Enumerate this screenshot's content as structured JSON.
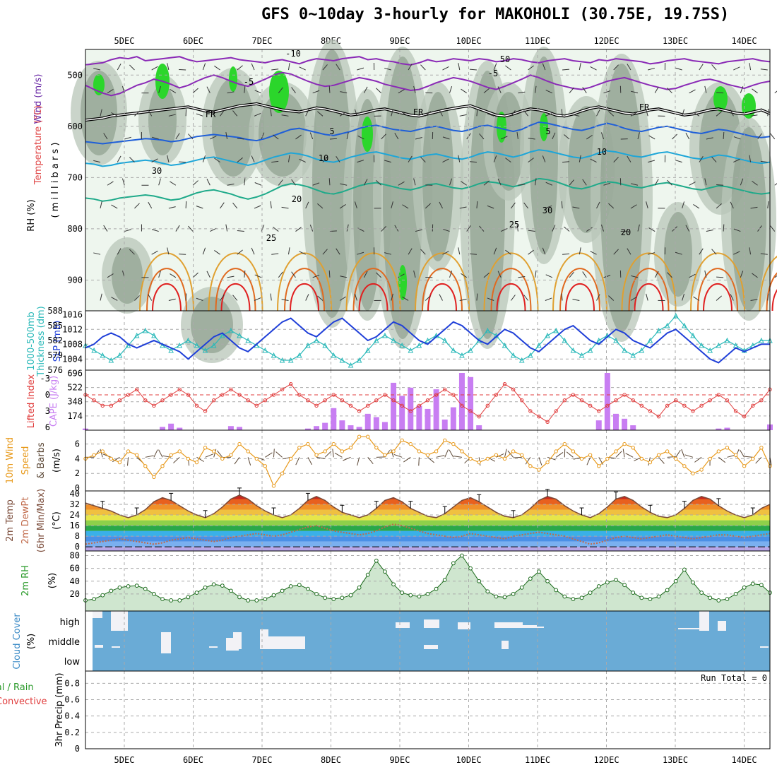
{
  "title": "GFS 0~10day 3-hourly for MAKOHOLI (30.75E, 19.75S)",
  "days": [
    "5DEC",
    "6DEC",
    "7DEC",
    "8DEC",
    "9DEC",
    "10DEC",
    "11DEC",
    "12DEC",
    "13DEC",
    "14DEC"
  ],
  "run_total": "Run Total = 0",
  "colors": {
    "rh_green": "#2bd62b",
    "slp": "#1f3fd8",
    "thick": "#2ab9b9",
    "li": "#e03c3c",
    "cape": "#c87ef2",
    "wind": "#e89a1c",
    "barb": "#5a4634",
    "temp": "#7a4a38",
    "dew": "#c06a4a",
    "rh2": "#2a9a2a",
    "cloud": "#6aabd6",
    "purple": "#8a2ab6",
    "blue": "#1f5fd8",
    "cyan": "#1ea6d8",
    "teal": "#1faa8a",
    "orange": "#e0a030",
    "dorange": "#e06a20",
    "red": "#e02020"
  },
  "chart_data": [
    {
      "type": "line",
      "name": "cross-section",
      "ylabels": [
        "Wind (m/s)",
        "Temperature (°C)",
        "RH (%)",
        "( m i l l i b a r s )"
      ],
      "yticks": [
        500,
        600,
        700,
        800,
        900
      ],
      "contour_labels": [
        "-10",
        "-5",
        "FR",
        "FR",
        "FR",
        "-5",
        "5",
        "5",
        "10",
        "10",
        "20",
        "20",
        "25",
        "25",
        "50",
        "30",
        "30"
      ],
      "levels": {
        "minus10": [
          480,
          478,
          476,
          470,
          466,
          468,
          464,
          472,
          470,
          468,
          466,
          464,
          470,
          474,
          472,
          470,
          468,
          466,
          470,
          472,
          474,
          476,
          472,
          470,
          474,
          478,
          472,
          468,
          470,
          472,
          468,
          466,
          464,
          470,
          468,
          472,
          474,
          478,
          480,
          476,
          470,
          474,
          472,
          468,
          470,
          472,
          468,
          470,
          474,
          472,
          468,
          470,
          474,
          476,
          472,
          470,
          468,
          472,
          474,
          476,
          470,
          472,
          468,
          470,
          472,
          474,
          478,
          476,
          472,
          470,
          468,
          472,
          474,
          476,
          478,
          474,
          472,
          470,
          468,
          472,
          474
        ],
        "minus5": [
          520,
          528,
          535,
          540,
          536,
          528,
          520,
          515,
          508,
          512,
          518,
          525,
          520,
          512,
          505,
          500,
          505,
          512,
          518,
          522,
          515,
          508,
          500,
          495,
          498,
          505,
          512,
          518,
          522,
          520,
          515,
          510,
          505,
          508,
          512,
          518,
          522,
          526,
          530,
          528,
          522,
          515,
          510,
          505,
          508,
          512,
          518,
          524,
          528,
          522,
          515,
          508,
          500,
          505,
          512,
          518,
          522,
          526,
          528,
          524,
          518,
          512,
          508,
          505,
          510,
          515,
          520,
          524,
          528,
          526,
          520,
          515,
          510,
          508,
          512,
          518,
          522,
          526,
          520,
          515,
          512
        ],
        "fr": [
          588,
          586,
          584,
          580,
          578,
          576,
          574,
          572,
          570,
          568,
          566,
          564,
          562,
          566,
          570,
          572,
          568,
          564,
          560,
          558,
          556,
          560,
          564,
          568,
          570,
          572,
          568,
          564,
          566,
          570,
          574,
          578,
          576,
          572,
          568,
          566,
          570,
          574,
          578,
          580,
          576,
          572,
          568,
          565,
          562,
          560,
          566,
          572,
          578,
          580,
          576,
          570,
          566,
          568,
          572,
          578,
          580,
          576,
          570,
          565,
          562,
          566,
          570,
          574,
          576,
          572,
          568,
          566,
          570,
          574,
          578,
          576,
          572,
          568,
          566,
          570,
          574,
          576,
          572,
          568,
          575
        ],
        "plus5": [
          630,
          632,
          634,
          632,
          630,
          628,
          626,
          624,
          625,
          627,
          630,
          628,
          624,
          620,
          618,
          616,
          618,
          620,
          622,
          626,
          628,
          624,
          618,
          612,
          606,
          604,
          608,
          612,
          616,
          618,
          614,
          610,
          604,
          600,
          598,
          602,
          606,
          608,
          610,
          606,
          602,
          600,
          604,
          608,
          610,
          606,
          600,
          598,
          602,
          606,
          610,
          606,
          598,
          592,
          594,
          598,
          602,
          606,
          608,
          604,
          598,
          594,
          598,
          604,
          608,
          610,
          606,
          602,
          600,
          604,
          608,
          612,
          614,
          610,
          606,
          608,
          612,
          616,
          620,
          622,
          620
        ],
        "plus10": [
          672,
          674,
          678,
          676,
          672,
          670,
          668,
          666,
          668,
          672,
          676,
          674,
          670,
          666,
          662,
          660,
          664,
          668,
          672,
          676,
          672,
          666,
          660,
          656,
          652,
          654,
          658,
          664,
          668,
          670,
          666,
          660,
          656,
          652,
          650,
          654,
          658,
          662,
          664,
          660,
          656,
          654,
          658,
          662,
          664,
          660,
          654,
          650,
          652,
          656,
          660,
          656,
          650,
          646,
          648,
          652,
          656,
          660,
          662,
          658,
          652,
          648,
          650,
          654,
          658,
          660,
          656,
          652,
          650,
          654,
          658,
          662,
          664,
          660,
          656,
          658,
          662,
          666,
          670,
          672,
          670
        ],
        "plus20": [
          740,
          742,
          746,
          744,
          740,
          738,
          736,
          734,
          736,
          740,
          744,
          742,
          736,
          730,
          726,
          724,
          728,
          732,
          738,
          742,
          738,
          732,
          724,
          716,
          712,
          714,
          718,
          724,
          730,
          732,
          728,
          722,
          716,
          712,
          710,
          714,
          718,
          722,
          724,
          720,
          714,
          712,
          716,
          720,
          722,
          718,
          712,
          708,
          710,
          714,
          718,
          714,
          708,
          702,
          704,
          708,
          714,
          720,
          722,
          718,
          712,
          708,
          710,
          714,
          718,
          720,
          716,
          712,
          710,
          714,
          718,
          722,
          724,
          720,
          716,
          718,
          722,
          726,
          730,
          732,
          730
        ]
      }
    },
    {
      "type": "line",
      "name": "thickness-slp",
      "ylabels_left": [
        "1000-500mb",
        "Thickness (dm)"
      ],
      "ylabel_right": "SLP (mb)",
      "yticks_left": [
        576,
        579,
        582,
        585,
        588
      ],
      "yticks_right": [
        1004,
        1008,
        1012,
        1016
      ],
      "slp": [
        1007,
        1008,
        1010,
        1011,
        1010,
        1008,
        1007,
        1008,
        1009,
        1008,
        1007,
        1006,
        1004,
        1006,
        1008,
        1010,
        1011,
        1009,
        1007,
        1006,
        1008,
        1010,
        1012,
        1014,
        1015,
        1013,
        1011,
        1010,
        1012,
        1014,
        1015,
        1013,
        1011,
        1009,
        1010,
        1012,
        1014,
        1013,
        1011,
        1009,
        1008,
        1010,
        1012,
        1014,
        1013,
        1011,
        1009,
        1008,
        1010,
        1012,
        1011,
        1009,
        1007,
        1006,
        1008,
        1010,
        1012,
        1013,
        1011,
        1009,
        1008,
        1010,
        1012,
        1011,
        1009,
        1008,
        1007,
        1009,
        1011,
        1012,
        1010,
        1008,
        1006,
        1004,
        1003,
        1005,
        1007,
        1006,
        1007,
        1008,
        1008
      ],
      "thickness": [
        581,
        580,
        579,
        578,
        579,
        581,
        583,
        584,
        583,
        581,
        580,
        581,
        582,
        581,
        580,
        581,
        583,
        584,
        583,
        582,
        581,
        580,
        579,
        578,
        578,
        579,
        581,
        582,
        581,
        579,
        578,
        577,
        578,
        580,
        582,
        583,
        582,
        581,
        580,
        581,
        582,
        583,
        582,
        580,
        579,
        580,
        582,
        584,
        583,
        581,
        579,
        578,
        579,
        581,
        583,
        584,
        582,
        580,
        579,
        580,
        582,
        583,
        582,
        580,
        579,
        580,
        582,
        584,
        585,
        587,
        585,
        583,
        581,
        580,
        581,
        582,
        581,
        580,
        581,
        582,
        582
      ]
    },
    {
      "type": "bar",
      "name": "lifted-index-cape",
      "ylabel_left": "Lifted Index",
      "ylabel_right": "CAPE (J/kg)",
      "yticks_left": [
        "-3",
        "0",
        "3",
        "6"
      ],
      "yticks_right": [
        174,
        348,
        522,
        696
      ],
      "li": [
        0,
        1,
        2,
        2,
        1,
        0,
        -1,
        1,
        2,
        1,
        0,
        -1,
        0,
        2,
        3,
        1,
        0,
        -1,
        0,
        1,
        2,
        1,
        0,
        -1,
        -2,
        0,
        1,
        2,
        1,
        0,
        1,
        2,
        3,
        2,
        1,
        0,
        1,
        2,
        3,
        2,
        1,
        0,
        -1,
        0,
        2,
        3,
        4,
        2,
        0,
        -2,
        -1,
        1,
        3,
        4,
        5,
        3,
        1,
        0,
        1,
        2,
        3,
        2,
        1,
        0,
        1,
        2,
        3,
        4,
        2,
        1,
        2,
        3,
        2,
        1,
        0,
        1,
        3,
        4,
        2,
        1,
        -1
      ],
      "cape": [
        20,
        0,
        0,
        0,
        0,
        0,
        0,
        0,
        0,
        40,
        80,
        30,
        0,
        0,
        0,
        0,
        0,
        50,
        40,
        0,
        0,
        0,
        0,
        0,
        0,
        0,
        20,
        50,
        90,
        270,
        120,
        60,
        40,
        200,
        160,
        100,
        580,
        420,
        520,
        300,
        260,
        500,
        130,
        280,
        700,
        650,
        60,
        0,
        0,
        0,
        0,
        0,
        0,
        0,
        0,
        0,
        0,
        0,
        0,
        0,
        120,
        700,
        200,
        140,
        60,
        0,
        0,
        0,
        0,
        0,
        0,
        0,
        0,
        0,
        20,
        30,
        0,
        0,
        0,
        0,
        70
      ]
    },
    {
      "type": "line",
      "name": "10m-wind",
      "ylabels": [
        "10m Wind",
        "Speed",
        "& Barbs",
        "(m/s)"
      ],
      "yticks": [
        0,
        2,
        4,
        6
      ],
      "speed": [
        4,
        4.5,
        5,
        4,
        3.5,
        5,
        4.5,
        3,
        1.5,
        3,
        4.5,
        5,
        4,
        3.5,
        5.5,
        5,
        4,
        4.5,
        6,
        5,
        4,
        3,
        0.3,
        2,
        4,
        5.5,
        6,
        4.5,
        5,
        6,
        5,
        5.5,
        7,
        7,
        5.5,
        4.5,
        5,
        6.5,
        6,
        5,
        4.5,
        5,
        6.5,
        6,
        5,
        4,
        3.5,
        4,
        4.5,
        4,
        5,
        4.5,
        3,
        2.5,
        3.5,
        5,
        6,
        5,
        4,
        4.5,
        3,
        4,
        5,
        6,
        5.5,
        4,
        3.5,
        4.5,
        5,
        4,
        3,
        2,
        2.5,
        4,
        5,
        5.5,
        4.5,
        3,
        4,
        5.5,
        3
      ]
    },
    {
      "type": "area",
      "name": "2m-temp",
      "ylabels": [
        "2m Temp",
        "2m DewPt",
        "(6hr Min/Max)",
        "(°C)"
      ],
      "yticks": [
        0,
        8,
        16,
        24,
        32,
        40
      ],
      "temp": [
        33,
        31,
        29,
        27,
        24,
        22,
        24,
        28,
        34,
        37,
        35,
        31,
        27,
        24,
        22,
        25,
        30,
        36,
        39,
        36,
        31,
        27,
        24,
        22,
        24,
        29,
        35,
        38,
        35,
        30,
        26,
        24,
        22,
        24,
        29,
        35,
        37,
        34,
        29,
        26,
        23,
        22,
        25,
        30,
        35,
        37,
        34,
        30,
        26,
        23,
        22,
        24,
        29,
        35,
        38,
        36,
        31,
        27,
        24,
        22,
        25,
        30,
        36,
        38,
        35,
        30,
        26,
        23,
        22,
        24,
        29,
        35,
        38,
        36,
        31,
        27,
        24,
        22,
        24,
        29,
        32
      ],
      "dewpt": [
        2,
        3,
        4,
        5,
        6,
        5,
        4,
        3,
        2,
        3,
        5,
        6,
        7,
        6,
        5,
        4,
        5,
        7,
        8,
        9,
        10,
        9,
        8,
        9,
        11,
        13,
        15,
        16,
        14,
        12,
        11,
        10,
        9,
        10,
        12,
        15,
        17,
        16,
        14,
        12,
        10,
        9,
        8,
        7,
        8,
        10,
        9,
        8,
        7,
        6,
        8,
        9,
        10,
        11,
        10,
        9,
        8,
        6,
        4,
        2,
        3,
        5,
        7,
        8,
        7,
        6,
        7,
        8,
        9,
        8,
        7,
        6,
        7,
        8,
        9,
        9,
        8,
        7,
        8,
        9,
        10
      ]
    },
    {
      "type": "area",
      "name": "2m-rh",
      "ylabels": [
        "2m RH",
        "(%)"
      ],
      "yticks": [
        20,
        40,
        60,
        80
      ],
      "rh": [
        10,
        12,
        18,
        25,
        30,
        32,
        33,
        28,
        20,
        12,
        10,
        10,
        15,
        22,
        30,
        35,
        33,
        25,
        15,
        10,
        10,
        12,
        18,
        25,
        32,
        34,
        28,
        20,
        14,
        12,
        14,
        18,
        30,
        50,
        72,
        55,
        35,
        22,
        18,
        16,
        20,
        28,
        42,
        68,
        80,
        60,
        40,
        24,
        16,
        15,
        20,
        30,
        44,
        55,
        40,
        26,
        16,
        12,
        14,
        22,
        32,
        38,
        42,
        34,
        22,
        14,
        12,
        16,
        26,
        40,
        58,
        38,
        22,
        14,
        10,
        12,
        20,
        30,
        36,
        34,
        22
      ]
    },
    {
      "type": "bar",
      "name": "cloud-cover",
      "ylabels": [
        "Cloud Cover",
        "(%)"
      ],
      "yticks": [
        "high",
        "middle",
        "low"
      ]
    },
    {
      "type": "bar",
      "name": "precip",
      "ylabels": [
        "3hr Precip (mm)"
      ],
      "legend": [
        "Total / Rain",
        "Convective"
      ],
      "yticks": [
        0,
        0.2,
        0.4,
        0.6,
        0.8
      ],
      "values": []
    }
  ]
}
